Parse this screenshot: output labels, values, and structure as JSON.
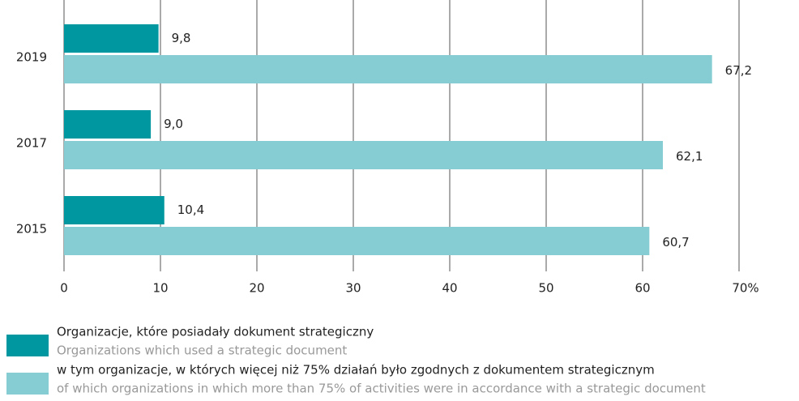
{
  "chart_data": {
    "type": "bar",
    "orientation": "horizontal",
    "categories": [
      "2019",
      "2017",
      "2015"
    ],
    "series": [
      {
        "name": "Organizacje, które posiadały dokument strategiczny",
        "description": "Organizations which used a strategic document",
        "color": "#0097a0",
        "values": [
          9.8,
          9.0,
          10.4
        ],
        "value_labels": [
          "9,8",
          "9,0",
          "10,4"
        ]
      },
      {
        "name": "w tym organizacje, w których więcej niż 75% działań było zgodnych z dokumentem strategicznym",
        "description": "of which organizations in which more than 75% of activities were in accordance with a strategic document",
        "color": "#85cdd3",
        "values": [
          67.2,
          62.1,
          60.7
        ],
        "value_labels": [
          "67,2",
          "62,1",
          "60,7"
        ]
      }
    ],
    "xlim": [
      0,
      70
    ],
    "xticks": [
      0,
      10,
      20,
      30,
      40,
      50,
      60,
      {
        "value": 70,
        "label": "70%"
      }
    ],
    "grid": true
  }
}
